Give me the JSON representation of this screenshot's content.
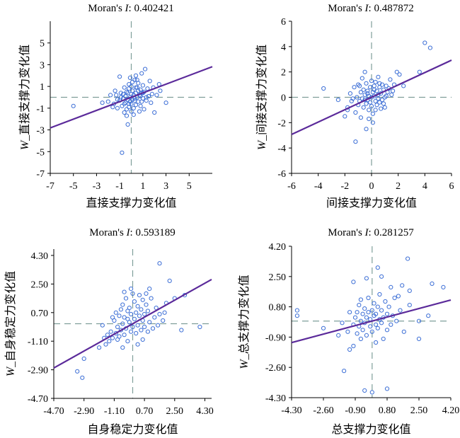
{
  "chart_data": [
    {
      "type": "scatter",
      "title_prefix": "Moran's ",
      "title_stat": "I",
      "title_value": ": 0.402421",
      "xlabel": "直接支撑力变化值",
      "ylabel_prefix": "W",
      "ylabel_rest": "_直接支撑力变化值",
      "xlim": [
        -7,
        7
      ],
      "ylim": [
        -7,
        7
      ],
      "xticks": [
        "-7",
        "-5",
        "-3",
        "-1",
        "1",
        "3",
        "5"
      ],
      "xtick_values": [
        -7,
        -5,
        -3,
        -1,
        1,
        3,
        5
      ],
      "yticks": [
        "-7",
        "-5",
        "-3",
        "-1",
        "1",
        "3",
        "5"
      ],
      "ytick_values": [
        -7,
        -5,
        -3,
        -1,
        1,
        3,
        5
      ],
      "fit": {
        "slope": 0.402421,
        "intercept": 0
      },
      "points": [
        [
          -5.0,
          -0.8
        ],
        [
          -2.5,
          -0.5
        ],
        [
          -2.0,
          -0.4
        ],
        [
          -1.8,
          0.2
        ],
        [
          -1.5,
          -0.6
        ],
        [
          -1.4,
          0.6
        ],
        [
          -1.2,
          -0.2
        ],
        [
          -1.2,
          -1.0
        ],
        [
          -1.0,
          1.9
        ],
        [
          -1.0,
          -0.3
        ],
        [
          -0.9,
          0.0
        ],
        [
          -0.8,
          -0.8
        ],
        [
          -0.7,
          0.3
        ],
        [
          -0.6,
          -1.4
        ],
        [
          -0.6,
          0.9
        ],
        [
          -0.5,
          -0.5
        ],
        [
          -0.5,
          0.1
        ],
        [
          -0.4,
          -1.1
        ],
        [
          -0.4,
          0.5
        ],
        [
          -0.3,
          -0.2
        ],
        [
          -0.3,
          -2.5
        ],
        [
          -0.3,
          0.4
        ],
        [
          -0.2,
          -0.9
        ],
        [
          -0.2,
          1.2
        ],
        [
          -0.1,
          -0.4
        ],
        [
          -0.1,
          0.0
        ],
        [
          0.0,
          0.3
        ],
        [
          0.0,
          -0.6
        ],
        [
          0.0,
          1.0
        ],
        [
          0.1,
          -0.2
        ],
        [
          0.1,
          0.6
        ],
        [
          0.2,
          -1.0
        ],
        [
          0.2,
          0.2
        ],
        [
          0.3,
          1.6
        ],
        [
          0.3,
          -0.3
        ],
        [
          0.4,
          0.4
        ],
        [
          0.4,
          -0.7
        ],
        [
          0.5,
          0.9
        ],
        [
          0.5,
          0.0
        ],
        [
          0.6,
          -0.4
        ],
        [
          0.6,
          1.3
        ],
        [
          0.7,
          0.2
        ],
        [
          0.8,
          0.7
        ],
        [
          0.8,
          -0.8
        ],
        [
          0.9,
          0.4
        ],
        [
          1.0,
          -0.1
        ],
        [
          1.0,
          1.1
        ],
        [
          1.1,
          0.5
        ],
        [
          1.2,
          2.6
        ],
        [
          1.3,
          -0.3
        ],
        [
          1.4,
          0.8
        ],
        [
          1.5,
          0.1
        ],
        [
          1.7,
          -0.5
        ],
        [
          1.9,
          0.9
        ],
        [
          2.0,
          -1.4
        ],
        [
          2.2,
          0.2
        ],
        [
          2.5,
          0.6
        ],
        [
          3.0,
          -0.5
        ],
        [
          -0.8,
          -5.1
        ],
        [
          -0.6,
          -0.6
        ],
        [
          0.2,
          -1.6
        ],
        [
          -0.1,
          1.8
        ],
        [
          0.9,
          2.2
        ],
        [
          1.6,
          1.5
        ],
        [
          -1.6,
          -0.9
        ],
        [
          0.4,
          2.0
        ],
        [
          1.1,
          -1.1
        ],
        [
          -0.2,
          0.8
        ],
        [
          0.7,
          -1.3
        ],
        [
          2.4,
          1.2
        ],
        [
          -0.9,
          0.4
        ],
        [
          0.3,
          -0.1
        ],
        [
          1.3,
          0.0
        ],
        [
          -0.4,
          -1.7
        ],
        [
          0.6,
          0.6
        ],
        [
          0.0,
          -1.3
        ],
        [
          1.8,
          0.3
        ],
        [
          -1.3,
          0.2
        ],
        [
          0.5,
          1.6
        ],
        [
          -0.7,
          -0.1
        ],
        [
          0.8,
          0.1
        ],
        [
          0.1,
          1.4
        ],
        [
          1.0,
          0.4
        ],
        [
          -0.2,
          -0.6
        ],
        [
          0.4,
          0.9
        ],
        [
          0.9,
          -0.4
        ]
      ]
    },
    {
      "type": "scatter",
      "title_prefix": "Moran's ",
      "title_stat": "I",
      "title_value": ": 0.487872",
      "xlabel": "间接支撑力变化值",
      "ylabel_prefix": "W",
      "ylabel_rest": "_间接支撑力变化值",
      "xlim": [
        -6,
        6
      ],
      "ylim": [
        -6,
        6
      ],
      "xticks": [
        "-6",
        "-4",
        "-2",
        "0",
        "2",
        "4",
        "6"
      ],
      "xtick_values": [
        -6,
        -4,
        -2,
        0,
        2,
        4,
        6
      ],
      "yticks": [
        "-6",
        "-4",
        "-2",
        "0",
        "2",
        "4",
        "6"
      ],
      "ytick_values": [
        -6,
        -4,
        -2,
        0,
        2,
        4,
        6
      ],
      "fit": {
        "slope": 0.487872,
        "intercept": 0
      },
      "points": [
        [
          -3.6,
          0.7
        ],
        [
          -2.5,
          -0.2
        ],
        [
          -2.0,
          -1.5
        ],
        [
          -1.8,
          -0.8
        ],
        [
          -1.6,
          0.3
        ],
        [
          -1.5,
          -0.3
        ],
        [
          -1.3,
          0.8
        ],
        [
          -1.2,
          -1.2
        ],
        [
          -1.1,
          0.0
        ],
        [
          -1.0,
          -0.6
        ],
        [
          -1.0,
          1.0
        ],
        [
          -0.9,
          -0.3
        ],
        [
          -0.8,
          0.4
        ],
        [
          -0.8,
          -1.6
        ],
        [
          -0.7,
          -0.1
        ],
        [
          -0.6,
          0.6
        ],
        [
          -0.6,
          -0.8
        ],
        [
          -0.5,
          2.0
        ],
        [
          -0.5,
          0.2
        ],
        [
          -0.4,
          -0.5
        ],
        [
          -0.4,
          1.1
        ],
        [
          -0.3,
          -0.2
        ],
        [
          -0.3,
          0.5
        ],
        [
          -0.2,
          -1.0
        ],
        [
          -0.2,
          0.1
        ],
        [
          -0.1,
          -0.4
        ],
        [
          -0.1,
          0.8
        ],
        [
          0.0,
          0.0
        ],
        [
          0.0,
          -0.7
        ],
        [
          0.1,
          0.4
        ],
        [
          0.1,
          -1.3
        ],
        [
          0.2,
          0.1
        ],
        [
          0.2,
          0.9
        ],
        [
          0.3,
          -0.3
        ],
        [
          0.3,
          1.2
        ],
        [
          0.4,
          0.5
        ],
        [
          0.4,
          -0.6
        ],
        [
          0.5,
          0.2
        ],
        [
          0.5,
          -0.1
        ],
        [
          0.6,
          0.8
        ],
        [
          0.6,
          -0.4
        ],
        [
          0.7,
          0.3
        ],
        [
          0.8,
          1.0
        ],
        [
          0.8,
          -0.2
        ],
        [
          0.9,
          0.6
        ],
        [
          1.0,
          0.0
        ],
        [
          1.0,
          -0.8
        ],
        [
          1.1,
          0.9
        ],
        [
          1.2,
          0.4
        ],
        [
          1.3,
          0.7
        ],
        [
          1.5,
          0.2
        ],
        [
          1.7,
          1.0
        ],
        [
          1.9,
          2.0
        ],
        [
          2.1,
          1.8
        ],
        [
          2.4,
          0.9
        ],
        [
          3.6,
          2.0
        ],
        [
          4.0,
          4.3
        ],
        [
          4.4,
          3.9
        ],
        [
          -1.2,
          -3.5
        ],
        [
          -0.4,
          -2.5
        ],
        [
          0.1,
          -2.0
        ],
        [
          -0.7,
          1.5
        ],
        [
          0.5,
          1.6
        ],
        [
          -1.8,
          -1.0
        ],
        [
          0.9,
          -0.5
        ],
        [
          -0.2,
          -1.7
        ],
        [
          1.4,
          1.4
        ],
        [
          -0.9,
          0.9
        ],
        [
          0.3,
          -1.0
        ],
        [
          1.6,
          0.5
        ],
        [
          -1.4,
          -0.1
        ],
        [
          0.0,
          1.3
        ],
        [
          0.7,
          -0.9
        ],
        [
          -0.5,
          -0.2
        ],
        [
          1.1,
          0.1
        ],
        [
          -0.3,
          0.3
        ],
        [
          0.2,
          0.6
        ],
        [
          0.6,
          1.1
        ]
      ]
    },
    {
      "type": "scatter",
      "title_prefix": "Moran's ",
      "title_stat": "I",
      "title_value": ": 0.593189",
      "xlabel": "自身稳定力变化值",
      "ylabel_prefix": "W",
      "ylabel_rest": "_自身稳定力变化值",
      "xlim": [
        -4.7,
        4.7
      ],
      "ylim": [
        -4.7,
        4.7
      ],
      "xticks": [
        "-4.70",
        "-2.90",
        "-1.10",
        "0.70",
        "2.50",
        "4.30"
      ],
      "xtick_values": [
        -4.7,
        -2.9,
        -1.1,
        0.7,
        2.5,
        4.3
      ],
      "yticks": [
        "-4.70",
        "-2.90",
        "-1.10",
        "0.70",
        "2.50",
        "4.30"
      ],
      "ytick_values": [
        -4.7,
        -2.9,
        -1.1,
        0.7,
        2.5,
        4.3
      ],
      "fit": {
        "slope": 0.593189,
        "intercept": 0
      },
      "points": [
        [
          -3.3,
          -3.0
        ],
        [
          -3.0,
          -3.4
        ],
        [
          -2.9,
          -2.2
        ],
        [
          -2.0,
          -1.5
        ],
        [
          -1.7,
          -0.9
        ],
        [
          -1.6,
          -1.3
        ],
        [
          -1.5,
          -0.7
        ],
        [
          -1.4,
          -1.1
        ],
        [
          -1.3,
          -0.5
        ],
        [
          -1.2,
          -0.9
        ],
        [
          -1.1,
          0.2
        ],
        [
          -1.0,
          -0.6
        ],
        [
          -1.0,
          0.7
        ],
        [
          -0.9,
          -1.0
        ],
        [
          -0.9,
          -0.2
        ],
        [
          -0.8,
          0.5
        ],
        [
          -0.8,
          -0.8
        ],
        [
          -0.7,
          0.9
        ],
        [
          -0.7,
          -0.4
        ],
        [
          -0.6,
          0.0
        ],
        [
          -0.6,
          1.2
        ],
        [
          -0.5,
          -0.7
        ],
        [
          -0.5,
          0.4
        ],
        [
          -0.4,
          1.6
        ],
        [
          -0.4,
          -0.3
        ],
        [
          -0.3,
          0.8
        ],
        [
          -0.3,
          -1.1
        ],
        [
          -0.2,
          0.1
        ],
        [
          -0.2,
          1.0
        ],
        [
          -0.1,
          -0.5
        ],
        [
          -0.1,
          0.6
        ],
        [
          0.0,
          1.9
        ],
        [
          0.0,
          -0.2
        ],
        [
          0.1,
          0.3
        ],
        [
          0.1,
          1.4
        ],
        [
          0.2,
          -0.6
        ],
        [
          0.2,
          0.7
        ],
        [
          0.3,
          1.1
        ],
        [
          0.3,
          -0.1
        ],
        [
          0.4,
          0.5
        ],
        [
          0.4,
          1.8
        ],
        [
          0.5,
          -0.4
        ],
        [
          0.5,
          0.9
        ],
        [
          0.6,
          0.2
        ],
        [
          0.6,
          1.5
        ],
        [
          0.7,
          -0.2
        ],
        [
          0.7,
          0.6
        ],
        [
          0.8,
          1.2
        ],
        [
          0.9,
          -0.5
        ],
        [
          0.9,
          0.8
        ],
        [
          1.0,
          0.1
        ],
        [
          1.1,
          1.6
        ],
        [
          1.2,
          -0.3
        ],
        [
          1.3,
          0.4
        ],
        [
          1.4,
          1.0
        ],
        [
          1.6,
          0.6
        ],
        [
          1.8,
          0.2
        ],
        [
          2.0,
          1.3
        ],
        [
          2.2,
          2.7
        ],
        [
          2.5,
          1.6
        ],
        [
          3.1,
          1.8
        ],
        [
          2.9,
          -0.4
        ],
        [
          4.0,
          -0.2
        ],
        [
          1.6,
          3.8
        ],
        [
          -0.5,
          2.0
        ],
        [
          0.3,
          -1.3
        ],
        [
          -1.8,
          -0.1
        ],
        [
          1.0,
          2.2
        ],
        [
          -0.1,
          2.2
        ],
        [
          0.6,
          -1.0
        ],
        [
          -1.2,
          0.4
        ],
        [
          1.5,
          -0.1
        ],
        [
          -0.6,
          -1.5
        ],
        [
          0.8,
          1.9
        ],
        [
          -0.3,
          0.3
        ],
        [
          1.9,
          0.7
        ]
      ]
    },
    {
      "type": "scatter",
      "title_prefix": "Moran's ",
      "title_stat": "I",
      "title_value": ": 0.281257",
      "xlabel": "总支撑力变化值",
      "ylabel_prefix": "W",
      "ylabel_rest": "_总支撑力变化值",
      "xlim": [
        -4.3,
        4.2
      ],
      "ylim": [
        -4.3,
        4.2
      ],
      "xticks": [
        "-4.30",
        "-2.60",
        "-0.90",
        "0.80",
        "2.50",
        "4.20"
      ],
      "xtick_values": [
        -4.3,
        -2.6,
        -0.9,
        0.8,
        2.5,
        4.2
      ],
      "yticks": [
        "-4.30",
        "-2.60",
        "-0.90",
        "0.80",
        "2.50",
        "4.20"
      ],
      "ytick_values": [
        -4.3,
        -2.6,
        -0.9,
        0.8,
        2.5,
        4.2
      ],
      "fit": {
        "slope": 0.281257,
        "intercept": 0
      },
      "points": [
        [
          -4.0,
          0.6
        ],
        [
          -4.0,
          0.3
        ],
        [
          -2.6,
          -0.4
        ],
        [
          -1.8,
          -0.8
        ],
        [
          -1.6,
          -0.1
        ],
        [
          -1.3,
          -0.6
        ],
        [
          -1.2,
          0.5
        ],
        [
          -1.0,
          -1.4
        ],
        [
          -1.0,
          -0.2
        ],
        [
          -0.9,
          0.2
        ],
        [
          -0.8,
          -0.7
        ],
        [
          -0.7,
          0.9
        ],
        [
          -0.7,
          -0.3
        ],
        [
          -0.6,
          0.0
        ],
        [
          -0.6,
          -1.0
        ],
        [
          -0.5,
          0.4
        ],
        [
          -0.5,
          -0.5
        ],
        [
          -0.4,
          0.7
        ],
        [
          -0.4,
          -0.1
        ],
        [
          -0.3,
          0.2
        ],
        [
          -0.3,
          -0.8
        ],
        [
          -0.2,
          0.5
        ],
        [
          -0.2,
          1.3
        ],
        [
          -0.1,
          -0.3
        ],
        [
          -0.1,
          0.1
        ],
        [
          0.0,
          0.6
        ],
        [
          0.0,
          -0.6
        ],
        [
          0.1,
          0.3
        ],
        [
          0.1,
          1.0
        ],
        [
          0.2,
          -0.2
        ],
        [
          0.2,
          0.4
        ],
        [
          0.3,
          0.8
        ],
        [
          0.3,
          -0.4
        ],
        [
          0.4,
          0.1
        ],
        [
          0.4,
          1.5
        ],
        [
          0.5,
          -0.1
        ],
        [
          0.5,
          0.6
        ],
        [
          0.6,
          0.2
        ],
        [
          0.7,
          1.1
        ],
        [
          0.8,
          -0.5
        ],
        [
          0.8,
          0.4
        ],
        [
          0.9,
          0.8
        ],
        [
          1.0,
          -0.2
        ],
        [
          1.1,
          0.3
        ],
        [
          1.2,
          1.3
        ],
        [
          1.3,
          0.0
        ],
        [
          1.5,
          0.6
        ],
        [
          1.7,
          -0.6
        ],
        [
          2.0,
          0.9
        ],
        [
          2.5,
          0.0
        ],
        [
          2.5,
          -1.0
        ],
        [
          3.0,
          0.3
        ],
        [
          3.8,
          1.9
        ],
        [
          1.9,
          3.5
        ],
        [
          1.6,
          2.0
        ],
        [
          2.0,
          1.7
        ],
        [
          0.3,
          3.0
        ],
        [
          -1.5,
          -2.8
        ],
        [
          -0.4,
          -3.9
        ],
        [
          0.0,
          -4.0
        ],
        [
          0.8,
          -3.8
        ],
        [
          -1.0,
          2.2
        ],
        [
          -0.3,
          2.4
        ],
        [
          0.5,
          2.5
        ],
        [
          3.2,
          2.1
        ],
        [
          1.0,
          1.9
        ],
        [
          -0.6,
          1.2
        ],
        [
          0.2,
          -1.2
        ],
        [
          -1.2,
          -1.6
        ],
        [
          1.4,
          1.4
        ],
        [
          -0.8,
          0.5
        ],
        [
          0.6,
          -1.0
        ]
      ]
    }
  ]
}
